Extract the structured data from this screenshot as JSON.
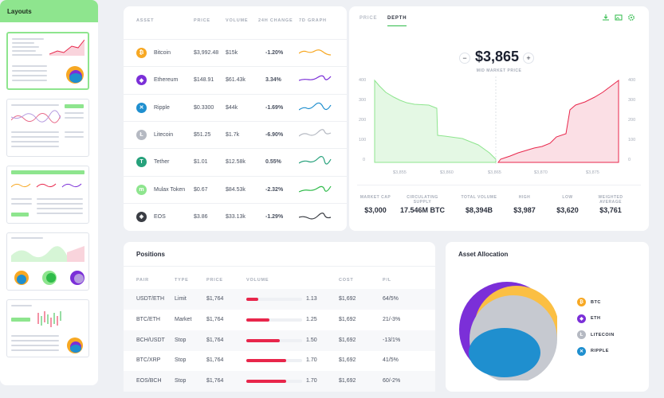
{
  "sidebar": {
    "title": "Layouts"
  },
  "assets": {
    "headers": {
      "asset": "ASSET",
      "price": "PRICE",
      "volume": "VOLUME",
      "change": "24H CHANGE",
      "graph": "7D GRAPH"
    },
    "rows": [
      {
        "name": "Bitcoin",
        "price": "$3,992.48",
        "volume": "$15k",
        "change": "-1.20%",
        "trend": "neg",
        "icon": "bitcoin-icon",
        "color": "#f7a823"
      },
      {
        "name": "Ethereum",
        "price": "$148.91",
        "volume": "$61.43k",
        "change": "3.34%",
        "trend": "pos",
        "icon": "ethereum-icon",
        "color": "#7b2fd8"
      },
      {
        "name": "Ripple",
        "price": "$0.3300",
        "volume": "$44k",
        "change": "-1.69%",
        "trend": "neg",
        "icon": "ripple-icon",
        "color": "#1f8fcf"
      },
      {
        "name": "Litecoin",
        "price": "$51.25",
        "volume": "$1.7k",
        "change": "-6.90%",
        "trend": "neg",
        "icon": "litecoin-icon",
        "color": "#b5b9c2"
      },
      {
        "name": "Tether",
        "price": "$1.01",
        "volume": "$12.58k",
        "change": "0.55%",
        "trend": "pos",
        "icon": "tether-icon",
        "color": "#26a17b"
      },
      {
        "name": "Mulax Token",
        "price": "$0.67",
        "volume": "$84.53k",
        "change": "-2.32%",
        "trend": "neg",
        "icon": "mulax-icon",
        "color": "#8ee58e"
      },
      {
        "name": "EOS",
        "price": "$3.86",
        "volume": "$33.13k",
        "change": "-1.29%",
        "trend": "neg",
        "icon": "eos-icon",
        "color": "#3a3d44"
      }
    ]
  },
  "depth": {
    "tabs": [
      "PRICE",
      "DEPTH"
    ],
    "active_tab": "DEPTH",
    "price": "$3,865",
    "price_label": "MID MARKET PRICE",
    "minus": "−",
    "plus": "+",
    "y_ticks": [
      "400",
      "300",
      "200",
      "100",
      "0"
    ],
    "x_ticks": [
      "$3,855",
      "$3,860",
      "$3,865",
      "$3,870",
      "$3,875"
    ],
    "stats": [
      {
        "label": "MARKET CAP",
        "value": "$3,000"
      },
      {
        "label": "CIRCULATING SUPPLY",
        "value": "17.546M BTC"
      },
      {
        "label": "TOTAL VOLUME",
        "value": "$8,394B"
      },
      {
        "label": "HIGH",
        "value": "$3,987"
      },
      {
        "label": "LOW",
        "value": "$3,620"
      },
      {
        "label": "WEIGHTED AVERAGE",
        "value": "$3,761"
      }
    ]
  },
  "positions": {
    "title": "Positions",
    "headers": {
      "pair": "PAIR",
      "type": "TYPE",
      "price": "PRICE",
      "volume": "VOLUME",
      "cost": "COST",
      "pl": "P/L"
    },
    "rows": [
      {
        "pair": "USDT/ETH",
        "type": "Limit",
        "price": "$1,764",
        "vol_label": "1.13",
        "vol_fill": 0.22,
        "cost": "$1,692",
        "pl": "64/5%"
      },
      {
        "pair": "BTC/ETH",
        "type": "Market",
        "price": "$1,764",
        "vol_label": "1.25",
        "vol_fill": 0.42,
        "cost": "$1,692",
        "pl": "21/-3%"
      },
      {
        "pair": "BCH/USDT",
        "type": "Stop",
        "price": "$1,764",
        "vol_label": "1.50",
        "vol_fill": 0.6,
        "cost": "$1,692",
        "pl": "-13/1%"
      },
      {
        "pair": "BTC/XRP",
        "type": "Stop",
        "price": "$1,764",
        "vol_label": "1.70",
        "vol_fill": 0.72,
        "cost": "$1,692",
        "pl": "41/5%"
      },
      {
        "pair": "EOS/BCH",
        "type": "Stop",
        "price": "$1,764",
        "vol_label": "1.70",
        "vol_fill": 0.72,
        "cost": "$1,692",
        "pl": "60/-2%"
      }
    ]
  },
  "allocation": {
    "title": "Asset Allocation",
    "legend": [
      {
        "label": "BTC",
        "color": "#f7a823",
        "icon": "bitcoin-icon"
      },
      {
        "label": "ETH",
        "color": "#7b2fd8",
        "icon": "ethereum-icon"
      },
      {
        "label": "LITECOIN",
        "color": "#b5b9c2",
        "icon": "litecoin-icon"
      },
      {
        "label": "RIPPLE",
        "color": "#1f8fcf",
        "icon": "ripple-icon"
      }
    ]
  }
}
